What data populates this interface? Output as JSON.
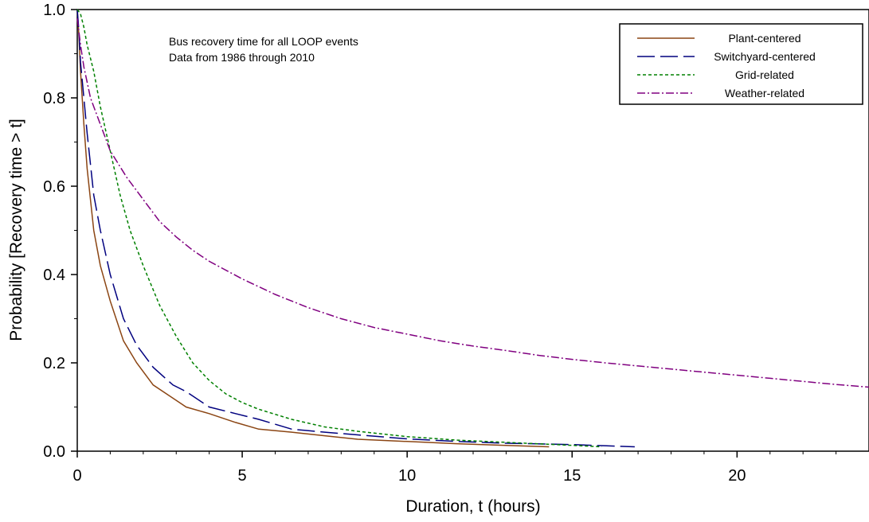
{
  "chart_data": {
    "type": "line",
    "xlabel": "Duration, t (hours)",
    "ylabel": "Probability [Recovery time > t]",
    "xlim": [
      0,
      24
    ],
    "ylim": [
      0,
      1
    ],
    "xticks": [
      0,
      5,
      10,
      15,
      20
    ],
    "xtick_labels": [
      "0",
      "5",
      "10",
      "15",
      "20"
    ],
    "yticks": [
      0,
      0.2,
      0.4,
      0.6,
      0.8,
      1.0
    ],
    "ytick_labels": [
      "0.0",
      "0.2",
      "0.4",
      "0.6",
      "0.8",
      "1.0"
    ],
    "grid": false,
    "legend_position": "top-right",
    "annotations": [
      "Bus recovery time for all LOOP events",
      "Data from 1986 through 2010"
    ],
    "series": [
      {
        "name": "Plant-centered",
        "color": "#8b4513",
        "style": "solid",
        "x": [
          0,
          0.05,
          0.1,
          0.2,
          0.3,
          0.5,
          0.7,
          1.0,
          1.4,
          1.8,
          2.3,
          2.8,
          3.3,
          4.0,
          4.8,
          5.5,
          6.5,
          7.5,
          8.5,
          10,
          11.5,
          13,
          14.3
        ],
        "y": [
          1.0,
          0.94,
          0.86,
          0.74,
          0.64,
          0.5,
          0.42,
          0.34,
          0.25,
          0.2,
          0.15,
          0.125,
          0.1,
          0.085,
          0.065,
          0.05,
          0.043,
          0.035,
          0.027,
          0.022,
          0.017,
          0.013,
          0.01
        ]
      },
      {
        "name": "Switchyard-centered",
        "color": "#00007f",
        "style": "dashed",
        "x": [
          0,
          0.05,
          0.1,
          0.2,
          0.3,
          0.5,
          0.7,
          1.0,
          1.4,
          1.8,
          2.3,
          2.9,
          3.3,
          4.0,
          4.8,
          5.5,
          6.5,
          7.5,
          8.5,
          10,
          11.5,
          13,
          15,
          16.9
        ],
        "y": [
          1.0,
          0.95,
          0.88,
          0.8,
          0.72,
          0.58,
          0.5,
          0.4,
          0.3,
          0.24,
          0.19,
          0.15,
          0.135,
          0.1,
          0.085,
          0.072,
          0.05,
          0.043,
          0.037,
          0.028,
          0.022,
          0.018,
          0.015,
          0.01
        ]
      },
      {
        "name": "Grid-related",
        "color": "#008000",
        "style": "dotted",
        "x": [
          0,
          0.1,
          0.2,
          0.3,
          0.5,
          0.7,
          1.0,
          1.3,
          1.6,
          2.0,
          2.5,
          3.0,
          3.5,
          4.0,
          4.5,
          5.0,
          5.5,
          6.5,
          7.5,
          8.5,
          10,
          11.5,
          13,
          14.5,
          15.9
        ],
        "y": [
          1.0,
          0.99,
          0.96,
          0.92,
          0.86,
          0.78,
          0.68,
          0.58,
          0.5,
          0.42,
          0.33,
          0.26,
          0.2,
          0.16,
          0.13,
          0.11,
          0.095,
          0.072,
          0.055,
          0.045,
          0.033,
          0.025,
          0.02,
          0.015,
          0.01
        ]
      },
      {
        "name": "Weather-related",
        "color": "#800080",
        "style": "dashdot",
        "x": [
          0,
          0.1,
          0.2,
          0.4,
          0.7,
          1.0,
          1.5,
          2.0,
          2.5,
          3.0,
          3.5,
          4.0,
          5.0,
          6.0,
          7.0,
          8.0,
          9.0,
          10.0,
          11.0,
          12.0,
          13.0,
          14.0,
          15.0,
          16.0,
          17.0,
          18.0,
          19.0,
          20.0,
          21.0,
          22.0,
          23.0,
          24.0
        ],
        "y": [
          0.98,
          0.92,
          0.87,
          0.8,
          0.74,
          0.68,
          0.62,
          0.57,
          0.52,
          0.485,
          0.455,
          0.43,
          0.39,
          0.355,
          0.325,
          0.3,
          0.28,
          0.265,
          0.25,
          0.238,
          0.228,
          0.217,
          0.208,
          0.2,
          0.193,
          0.186,
          0.179,
          0.172,
          0.165,
          0.158,
          0.151,
          0.145
        ]
      }
    ]
  }
}
